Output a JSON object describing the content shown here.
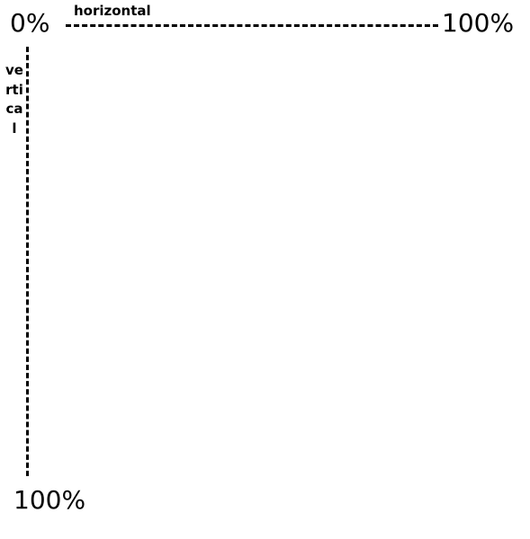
{
  "axes": {
    "origin_label": "0%",
    "horizontal": {
      "title": "horizontal",
      "end_label": "100%",
      "line_style": "dashed"
    },
    "vertical": {
      "title": "vertical",
      "end_label": "100%",
      "line_style": "dashed"
    }
  },
  "colors": {
    "background": "#ffffff",
    "ink": "#000000"
  }
}
